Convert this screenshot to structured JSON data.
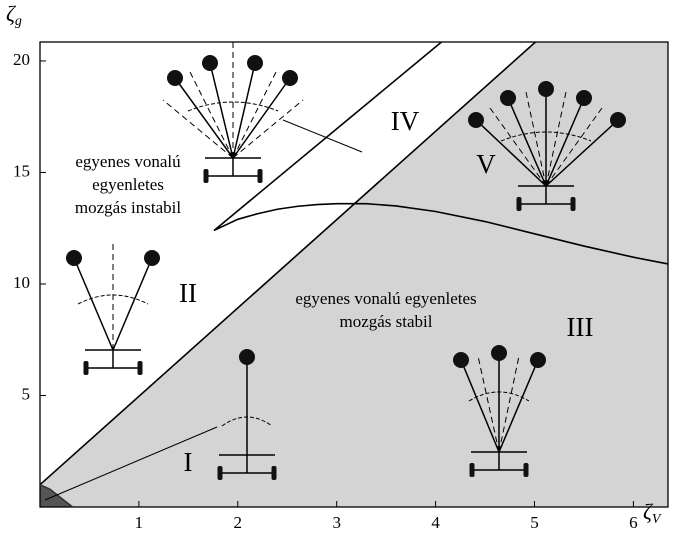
{
  "chart_data": {
    "type": "line",
    "x_label": {
      "symbol": "ζ",
      "subscript": "V"
    },
    "y_label": {
      "symbol": "ζ",
      "subscript": "g"
    },
    "xlim": [
      0,
      6.35
    ],
    "ylim": [
      0,
      20.85
    ],
    "xticks": [
      1,
      2,
      3,
      4,
      5,
      6
    ],
    "yticks": [
      5,
      10,
      15,
      20
    ],
    "series": [
      {
        "color": "#000000",
        "fill": "#d4d4d4",
        "fill_side": "right",
        "x": [
          0,
          5.01
        ],
        "values": [
          1,
          20.85
        ]
      },
      {
        "color": "#000000",
        "x": [
          1.76,
          4.06
        ],
        "values": [
          12.4,
          20.85
        ]
      },
      {
        "color": "#000000",
        "x": [
          1.76,
          2.0,
          2.2,
          2.4,
          2.6,
          2.8,
          3.0,
          3.3,
          3.6,
          4.0,
          4.5,
          5.0,
          5.5,
          6.0,
          6.35
        ],
        "values": [
          12.4,
          12.9,
          13.15,
          13.35,
          13.48,
          13.56,
          13.6,
          13.6,
          13.5,
          13.25,
          12.8,
          12.25,
          11.7,
          11.2,
          10.9
        ]
      },
      {
        "color": "#333333",
        "fill": "#555555",
        "fill_side": "left",
        "x": [
          0,
          0.1,
          0.2,
          0.33
        ],
        "values": [
          1,
          0.8,
          0.45,
          0
        ]
      }
    ],
    "region_labels": [
      "I",
      "II",
      "III",
      "IV",
      "V"
    ],
    "annotations": [
      [
        "egyenes vonalú",
        "egyenletes",
        "mozgás instabil"
      ],
      [
        "egyenes vonalú egyenletes",
        "mozgás stabil"
      ]
    ]
  }
}
